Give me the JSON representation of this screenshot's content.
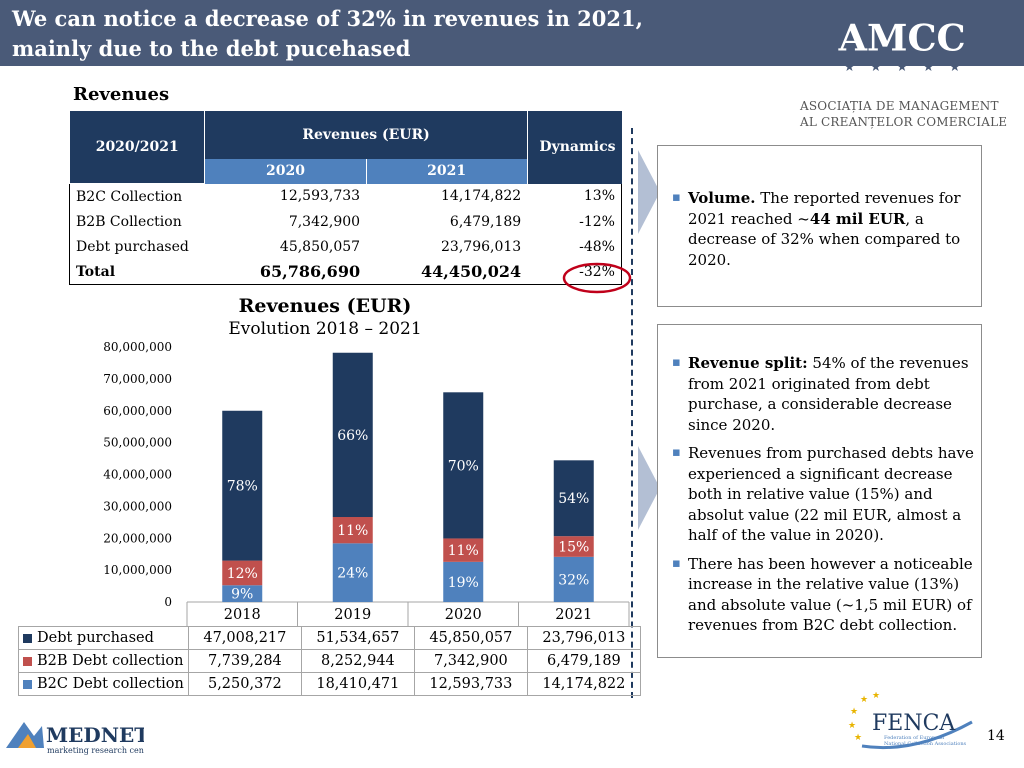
{
  "header": {
    "title_line1": "We can notice a decrease of 32% in revenues in 2021,",
    "title_line2": "mainly due to the debt pucehased"
  },
  "logos": {
    "amcc": "AMCC",
    "amcc_line1": "ASOCIAȚIA DE MANAGEMENT",
    "amcc_line2": "AL CREANȚELOR COMERCIALE",
    "mednet": "MEDNET",
    "mednet_sub": "marketing research center",
    "fenca": "FENCA",
    "fenca_sub1": "Federation of European",
    "fenca_sub2": "National Collection Associations"
  },
  "section": {
    "title": "Revenues"
  },
  "revenue_table": {
    "period_header": "2020/2021",
    "revenues_header": "Revenues (EUR)",
    "dynamics_header": "Dynamics",
    "year_a": "2020",
    "year_b": "2021",
    "rows": [
      {
        "label": "B2C Collection",
        "a": "12,593,733",
        "b": "14,174,822",
        "dyn": "13%"
      },
      {
        "label": "B2B Collection",
        "a": "7,342,900",
        "b": "6,479,189",
        "dyn": "-12%"
      },
      {
        "label": "Debt purchased",
        "a": "45,850,057",
        "b": "23,796,013",
        "dyn": "-48%"
      },
      {
        "label": "Total",
        "a": "65,786,690",
        "b": "44,450,024",
        "dyn": "-32%"
      }
    ]
  },
  "info_volume": {
    "bold": "Volume.",
    "text1": " The reported revenues for 2021 reached ~",
    "bold2": "44 mil EUR",
    "text2": ", a decrease of 32% when compared to 2020."
  },
  "info_split": {
    "item1_bold": "Revenue split:",
    "item1_text": " 54% of the revenues from 2021 originated from debt purchase, a considerable decrease since 2020.",
    "item2": "Revenues from purchased debts have experienced a significant decrease both in relative value (15%) and absolut value (22 mil EUR, almost a half of the value in 2020).",
    "item3": "There has been however a noticeable increase in the relative value (13%) and absolute value (~1,5 mil EUR) of revenues from B2C debt collection."
  },
  "chart_data": {
    "type": "bar",
    "stacked": true,
    "title": "Revenues  (EUR)",
    "subtitle": "Evolution 2018 – 2021",
    "categories": [
      "2018",
      "2019",
      "2020",
      "2021"
    ],
    "ylim": [
      0,
      80000000
    ],
    "yticks": [
      0,
      10000000,
      20000000,
      30000000,
      40000000,
      50000000,
      60000000,
      70000000,
      80000000
    ],
    "ytick_labels": [
      "0",
      "10,000,000",
      "20,000,000",
      "30,000,000",
      "40,000,000",
      "50,000,000",
      "60,000,000",
      "70,000,000",
      "80,000,000"
    ],
    "series": [
      {
        "name": "B2C Debt collection",
        "color": "#4f81bd",
        "values": [
          5250372,
          18410471,
          12593733,
          14174822
        ],
        "display": [
          "5,250,372",
          "18,410,471",
          "12,593,733",
          "14,174,822"
        ],
        "pct": [
          "9%",
          "24%",
          "19%",
          "32%"
        ]
      },
      {
        "name": "B2B Debt collection",
        "color": "#c0504d",
        "values": [
          7739284,
          8252944,
          7342900,
          6479189
        ],
        "display": [
          "7,739,284",
          "8,252,944",
          "7,342,900",
          "6,479,189"
        ],
        "pct": [
          "12%",
          "11%",
          "11%",
          "15%"
        ]
      },
      {
        "name": "Debt purchased",
        "color": "#1f3a5f",
        "values": [
          47008217,
          51534657,
          45850057,
          23796013
        ],
        "display": [
          "47,008,217",
          "51,534,657",
          "45,850,057",
          "23,796,013"
        ],
        "pct": [
          "78%",
          "66%",
          "70%",
          "54%"
        ]
      }
    ]
  },
  "page_number": "14"
}
